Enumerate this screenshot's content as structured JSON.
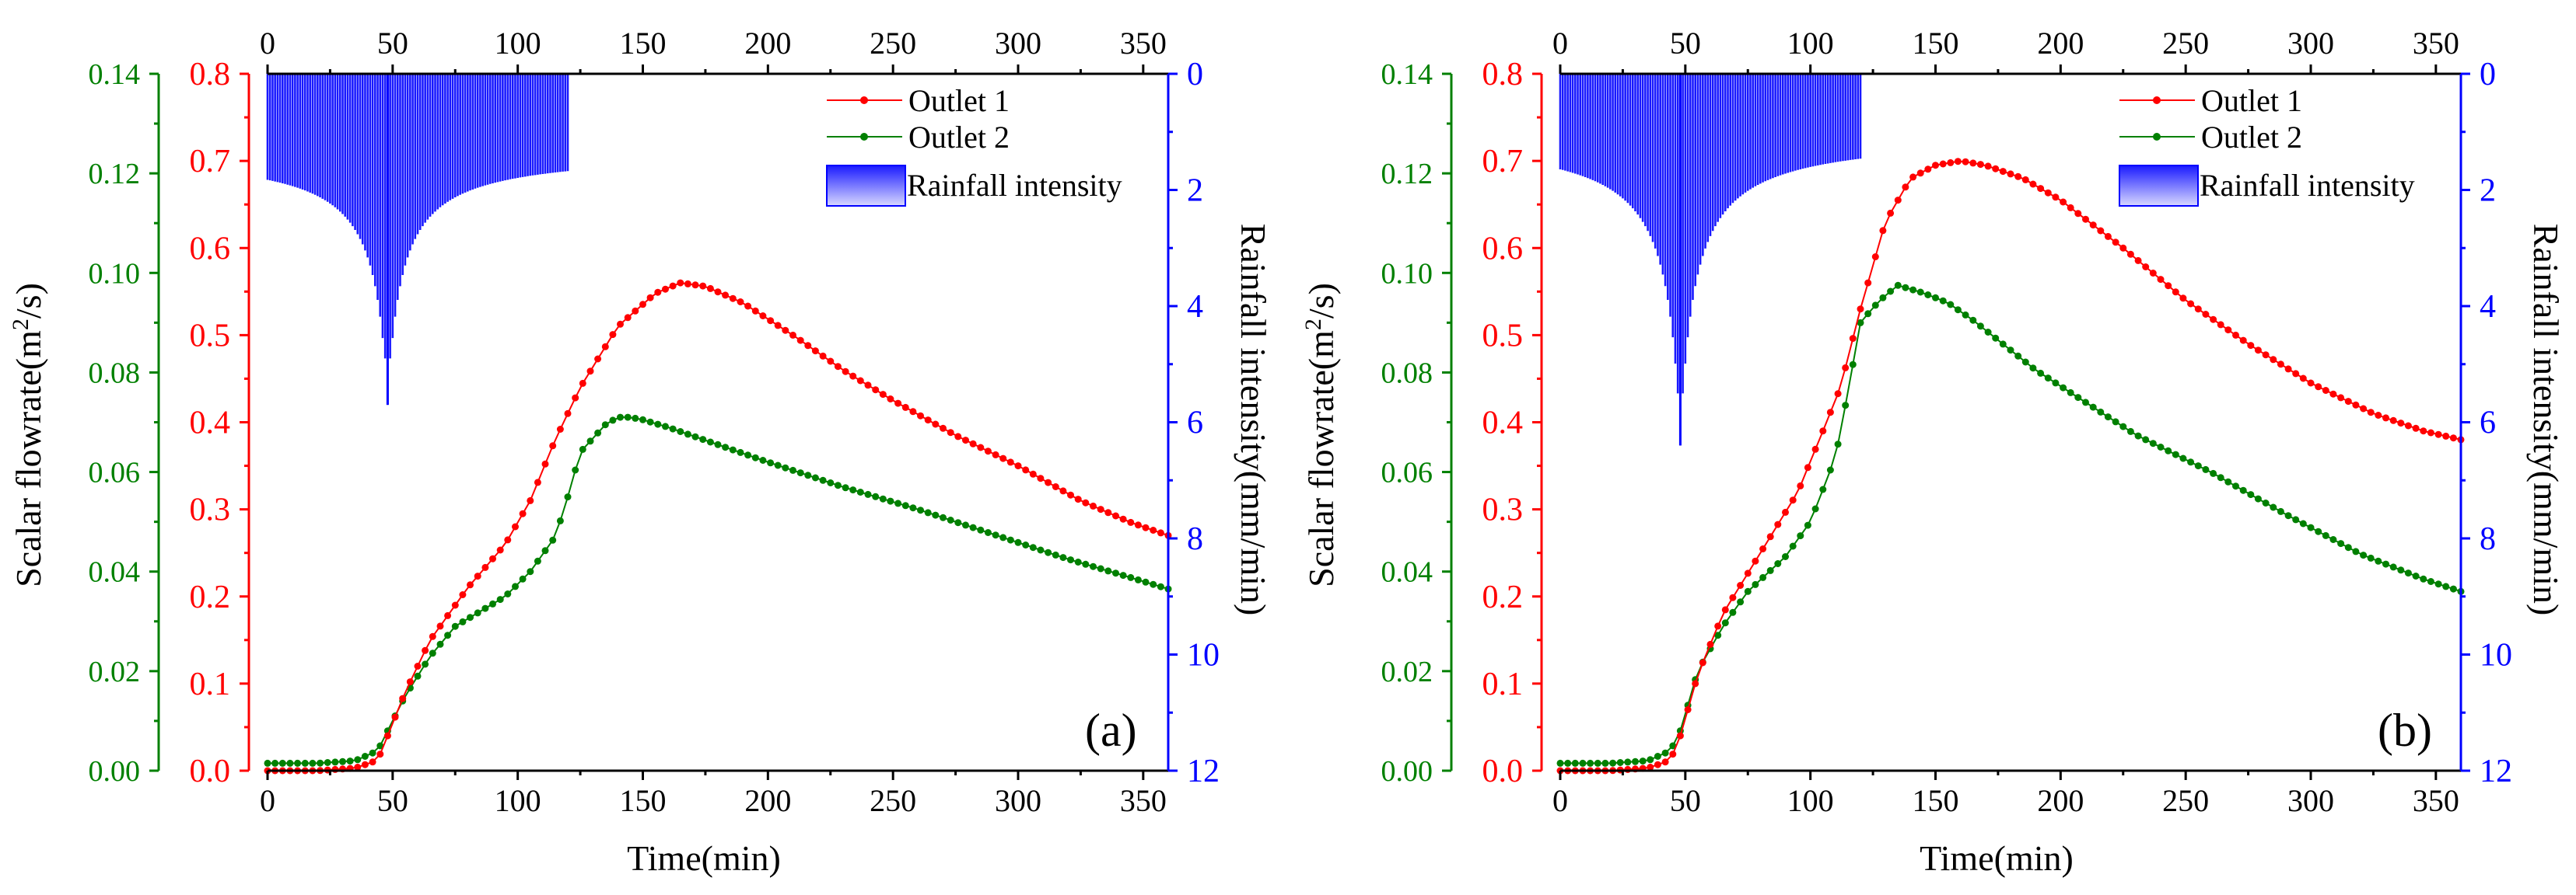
{
  "chart_data": [
    {
      "panel_label": "(a)",
      "type": "line",
      "xlabel": "Time(min)",
      "ylabel_left": "Scalar flowrate(m²/s)",
      "ylabel_right": "Rainfall intensity(mm/min)",
      "xlim": [
        0,
        360
      ],
      "xticks": [
        "0",
        "50",
        "100",
        "150",
        "200",
        "250",
        "300",
        "350"
      ],
      "ylim_green": [
        0,
        0.14
      ],
      "yticks_green": [
        "0.00",
        "0.02",
        "0.04",
        "0.06",
        "0.08",
        "0.10",
        "0.12",
        "0.14"
      ],
      "ylim_red": [
        0,
        0.8
      ],
      "yticks_red": [
        "0.0",
        "0.1",
        "0.2",
        "0.3",
        "0.4",
        "0.5",
        "0.6",
        "0.7",
        "0.8"
      ],
      "ylim_blue_inverted": [
        0,
        12
      ],
      "yticks_blue": [
        "0",
        "2",
        "4",
        "6",
        "8",
        "10",
        "12"
      ],
      "legend": [
        "Outlet 1",
        "Outlet 2",
        "Rainfall intensity"
      ],
      "series": [
        {
          "name": "Outlet 1",
          "color": "#ff0000",
          "axis": "red",
          "x": [
            0,
            20,
            35,
            44,
            48,
            55,
            65,
            80,
            95,
            105,
            115,
            125,
            140,
            155,
            165,
            175,
            190,
            210,
            230,
            250,
            275,
            300,
            325,
            345,
            360
          ],
          "y": [
            0,
            0,
            0.003,
            0.012,
            0.04,
            0.09,
            0.15,
            0.21,
            0.26,
            0.31,
            0.38,
            0.44,
            0.51,
            0.548,
            0.56,
            0.556,
            0.537,
            0.5,
            0.46,
            0.425,
            0.385,
            0.35,
            0.31,
            0.285,
            0.27
          ]
        },
        {
          "name": "Outlet 2",
          "color": "#008000",
          "axis": "green",
          "x": [
            0,
            20,
            35,
            44,
            48,
            55,
            65,
            75,
            85,
            95,
            105,
            115,
            120,
            125,
            135,
            140,
            145,
            150,
            160,
            180,
            200,
            230,
            260,
            290,
            320,
            345,
            360
          ],
          "y": [
            0.0015,
            0.0015,
            0.002,
            0.004,
            0.008,
            0.015,
            0.023,
            0.029,
            0.032,
            0.035,
            0.04,
            0.047,
            0.055,
            0.064,
            0.0695,
            0.071,
            0.071,
            0.0705,
            0.069,
            0.0655,
            0.062,
            0.057,
            0.0525,
            0.0475,
            0.0425,
            0.0388,
            0.0365
          ]
        },
        {
          "name": "Rainfall intensity",
          "color": "#0000ff",
          "axis": "blue",
          "type": "bar",
          "x_start": 0,
          "x_end": 120,
          "peak_time": 48,
          "peak_value": 5.7,
          "base_value": 1.3
        }
      ]
    },
    {
      "panel_label": "(b)",
      "type": "line",
      "xlabel": "Time(min)",
      "ylabel_left": "Scalar flowrate(m²/s)",
      "ylabel_right": "Rainfall intensity(mm/min)",
      "xlim": [
        0,
        360
      ],
      "xticks": [
        "0",
        "50",
        "100",
        "150",
        "200",
        "250",
        "300",
        "350"
      ],
      "ylim_green": [
        0,
        0.14
      ],
      "yticks_green": [
        "0.00",
        "0.02",
        "0.04",
        "0.06",
        "0.08",
        "0.10",
        "0.12",
        "0.14"
      ],
      "ylim_red": [
        0,
        0.8
      ],
      "yticks_red": [
        "0.0",
        "0.1",
        "0.2",
        "0.3",
        "0.4",
        "0.5",
        "0.6",
        "0.7",
        "0.8"
      ],
      "ylim_blue_inverted": [
        0,
        12
      ],
      "yticks_blue": [
        "0",
        "2",
        "4",
        "6",
        "8",
        "10",
        "12"
      ],
      "legend": [
        "Outlet 1",
        "Outlet 2",
        "Rainfall intensity"
      ],
      "series": [
        {
          "name": "Outlet 1",
          "color": "#ff0000",
          "axis": "red",
          "x": [
            0,
            20,
            35,
            44,
            48,
            55,
            65,
            80,
            95,
            105,
            112,
            120,
            130,
            140,
            150,
            160,
            170,
            185,
            200,
            225,
            250,
            275,
            300,
            325,
            345,
            360
          ],
          "y": [
            0,
            0,
            0.003,
            0.012,
            0.04,
            0.11,
            0.18,
            0.25,
            0.32,
            0.39,
            0.44,
            0.53,
            0.63,
            0.68,
            0.695,
            0.7,
            0.695,
            0.68,
            0.655,
            0.6,
            0.54,
            0.49,
            0.445,
            0.41,
            0.39,
            0.38
          ]
        },
        {
          "name": "Outlet 2",
          "color": "#008000",
          "axis": "green",
          "x": [
            0,
            20,
            35,
            44,
            48,
            55,
            65,
            75,
            90,
            100,
            110,
            115,
            120,
            125,
            130,
            135,
            145,
            155,
            165,
            175,
            190,
            210,
            230,
            260,
            290,
            320,
            345,
            360
          ],
          "y": [
            0.0015,
            0.0015,
            0.002,
            0.004,
            0.008,
            0.02,
            0.029,
            0.036,
            0.043,
            0.05,
            0.063,
            0.076,
            0.09,
            0.093,
            0.0955,
            0.0975,
            0.096,
            0.094,
            0.0905,
            0.0865,
            0.0805,
            0.074,
            0.0675,
            0.06,
            0.0515,
            0.0435,
            0.0385,
            0.036
          ]
        },
        {
          "name": "Rainfall intensity",
          "color": "#0000ff",
          "axis": "blue",
          "type": "bar",
          "x_start": 0,
          "x_end": 120,
          "peak_time": 48,
          "peak_value": 6.4,
          "base_value": 1.0
        }
      ]
    }
  ]
}
